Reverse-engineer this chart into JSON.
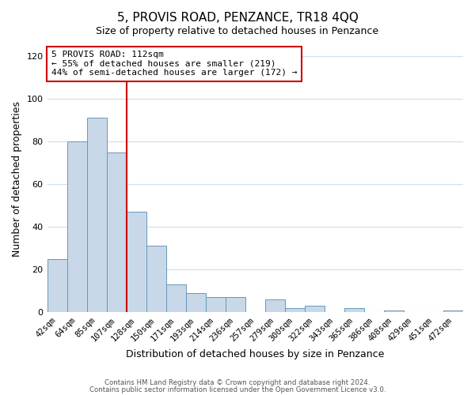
{
  "title": "5, PROVIS ROAD, PENZANCE, TR18 4QQ",
  "subtitle": "Size of property relative to detached houses in Penzance",
  "xlabel": "Distribution of detached houses by size in Penzance",
  "ylabel": "Number of detached properties",
  "bar_labels": [
    "42sqm",
    "64sqm",
    "85sqm",
    "107sqm",
    "128sqm",
    "150sqm",
    "171sqm",
    "193sqm",
    "214sqm",
    "236sqm",
    "257sqm",
    "279sqm",
    "300sqm",
    "322sqm",
    "343sqm",
    "365sqm",
    "386sqm",
    "408sqm",
    "429sqm",
    "451sqm",
    "472sqm"
  ],
  "bar_values": [
    25,
    80,
    91,
    75,
    47,
    31,
    13,
    9,
    7,
    7,
    0,
    6,
    2,
    3,
    0,
    2,
    0,
    1,
    0,
    0,
    1
  ],
  "bar_color": "#c8d8e8",
  "bar_edge_color": "#6699bb",
  "property_line_idx": 3,
  "annotation_title": "5 PROVIS ROAD: 112sqm",
  "annotation_line1": "← 55% of detached houses are smaller (219)",
  "annotation_line2": "44% of semi-detached houses are larger (172) →",
  "annotation_box_facecolor": "#ffffff",
  "annotation_border_color": "#cc0000",
  "vline_color": "#cc0000",
  "ylim": [
    0,
    125
  ],
  "yticks": [
    0,
    20,
    40,
    60,
    80,
    100,
    120
  ],
  "footer1": "Contains HM Land Registry data © Crown copyright and database right 2024.",
  "footer2": "Contains public sector information licensed under the Open Government Licence v3.0.",
  "background_color": "#ffffff",
  "grid_color": "#d0dce8",
  "title_fontsize": 11,
  "subtitle_fontsize": 9
}
